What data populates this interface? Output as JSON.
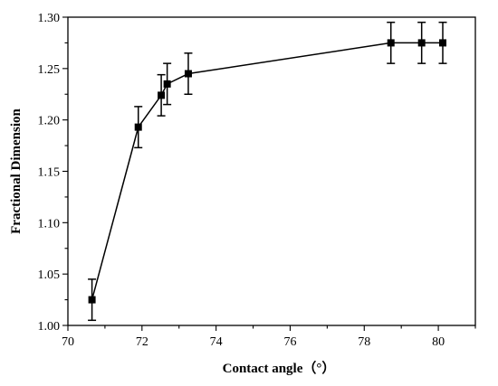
{
  "chart_data": {
    "type": "line",
    "title": "",
    "xlabel": "Contact angle（°）",
    "ylabel": "Fractional Dimension",
    "xlim": [
      70,
      81
    ],
    "ylim": [
      1.0,
      1.3
    ],
    "xticks": [
      "70",
      "72",
      "74",
      "76",
      "78",
      "80"
    ],
    "xtick_values": [
      70,
      72,
      74,
      76,
      78,
      80
    ],
    "yticks": [
      "1.00",
      "1.05",
      "1.10",
      "1.15",
      "1.20",
      "1.25",
      "1.30"
    ],
    "ytick_values": [
      1.0,
      1.05,
      1.1,
      1.15,
      1.2,
      1.25,
      1.3
    ],
    "grid": false,
    "legend": "none",
    "marker": "square",
    "color": "#000000",
    "series": [
      {
        "x": [
          70.65,
          71.9,
          72.52,
          72.68,
          73.25,
          78.72,
          79.55,
          80.12
        ],
        "values": [
          1.025,
          1.193,
          1.224,
          1.235,
          1.245,
          1.275,
          1.275,
          1.275
        ],
        "error": [
          0.02,
          0.02,
          0.02,
          0.02,
          0.02,
          0.02,
          0.02,
          0.02
        ]
      }
    ]
  }
}
